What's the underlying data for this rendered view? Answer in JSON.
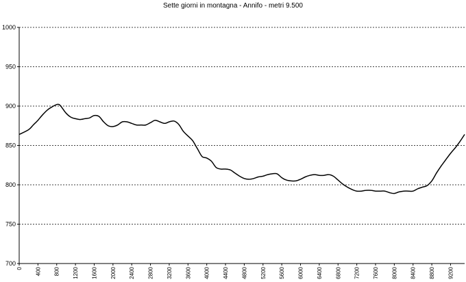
{
  "chart_data": {
    "type": "line",
    "title": "Sette giorni in montagna - Annifo - metri 9.500",
    "xlabel": "",
    "ylabel": "",
    "xlim": [
      0,
      9500
    ],
    "ylim": [
      700,
      1000
    ],
    "yticks": [
      700,
      750,
      800,
      850,
      900,
      950,
      1000
    ],
    "xticks": [
      0,
      400,
      800,
      1200,
      1600,
      2000,
      2400,
      2800,
      3200,
      3600,
      4000,
      4400,
      4800,
      5200,
      5600,
      6000,
      6400,
      6800,
      7200,
      7600,
      8000,
      8400,
      8800,
      9200
    ],
    "grid": "horizontal-dashed",
    "legend": "none",
    "line_color": "#000000",
    "series": [
      {
        "x": [
          0,
          200,
          300,
          400,
          500,
          600,
          700,
          800,
          850,
          900,
          1000,
          1100,
          1200,
          1300,
          1400,
          1500,
          1600,
          1700,
          1800,
          1900,
          2000,
          2100,
          2200,
          2300,
          2400,
          2500,
          2600,
          2700,
          2800,
          2900,
          3000,
          3100,
          3200,
          3300,
          3400,
          3500,
          3600,
          3700,
          3800,
          3900,
          4000,
          4100,
          4200,
          4300,
          4400,
          4500,
          4600,
          4700,
          4800,
          4900,
          5000,
          5100,
          5200,
          5300,
          5400,
          5500,
          5600,
          5700,
          5800,
          5900,
          6000,
          6100,
          6200,
          6300,
          6400,
          6500,
          6600,
          6700,
          6800,
          6900,
          7000,
          7100,
          7200,
          7300,
          7400,
          7500,
          7600,
          7700,
          7800,
          7900,
          8000,
          8100,
          8200,
          8300,
          8400,
          8500,
          8600,
          8700,
          8800,
          8900,
          9000,
          9100,
          9200,
          9300,
          9400,
          9500
        ],
        "y": [
          864,
          870,
          876,
          882,
          889,
          895,
          899,
          902,
          902,
          899,
          891,
          886,
          884,
          883,
          884,
          885,
          888,
          887,
          880,
          875,
          874,
          876,
          880,
          880,
          878,
          876,
          876,
          876,
          879,
          882,
          880,
          878,
          880,
          881,
          877,
          868,
          862,
          856,
          846,
          836,
          834,
          830,
          822,
          820,
          820,
          819,
          815,
          811,
          808,
          807,
          808,
          810,
          811,
          813,
          814,
          814,
          809,
          806,
          805,
          805,
          807,
          810,
          812,
          813,
          812,
          812,
          813,
          811,
          806,
          801,
          797,
          794,
          792,
          792,
          793,
          793,
          792,
          792,
          792,
          790,
          789,
          791,
          792,
          792,
          792,
          795,
          797,
          799,
          805,
          815,
          824,
          832,
          840,
          847,
          855,
          864
        ]
      }
    ]
  }
}
